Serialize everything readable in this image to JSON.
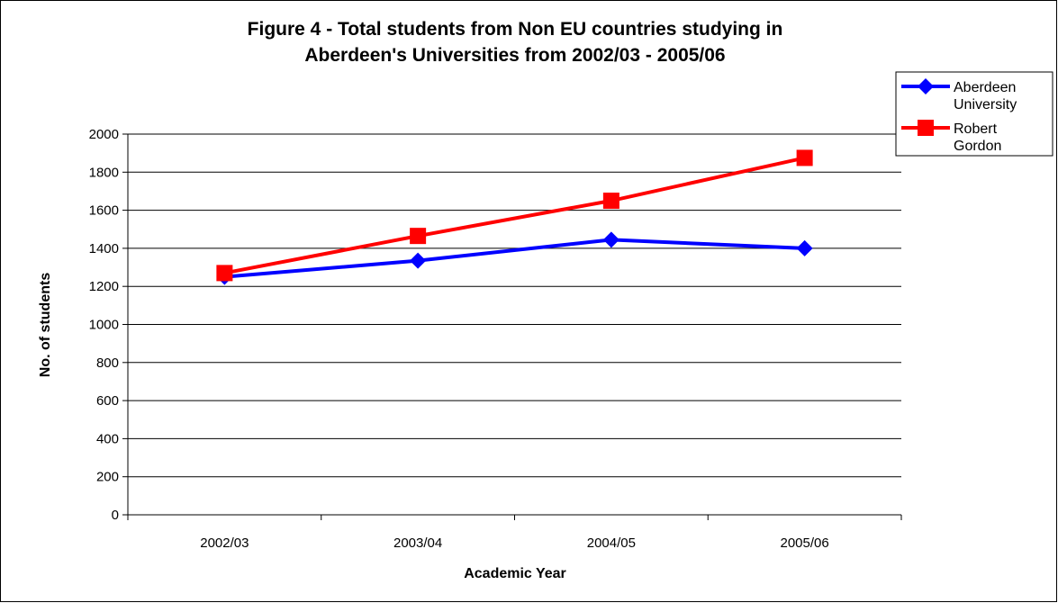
{
  "chart_data": {
    "type": "line",
    "title": [
      "Figure 4 - Total students from Non EU countries studying in",
      "Aberdeen's Universities from 2002/03 - 2005/06"
    ],
    "xlabel": "Academic Year",
    "ylabel": "No. of students",
    "categories": [
      "2002/03",
      "2003/04",
      "2004/05",
      "2005/06"
    ],
    "ylim": [
      0,
      2000
    ],
    "yticks": [
      0,
      200,
      400,
      600,
      800,
      1000,
      1200,
      1400,
      1600,
      1800,
      2000
    ],
    "grid": true,
    "legend_position": "top-right",
    "series": [
      {
        "name": "Aberdeen University",
        "legend_lines": [
          "Aberdeen",
          "University"
        ],
        "values": [
          1250,
          1335,
          1445,
          1400
        ],
        "color": "#0000ff",
        "marker": "diamond"
      },
      {
        "name": "Robert Gordon",
        "legend_lines": [
          "Robert",
          "Gordon"
        ],
        "values": [
          1270,
          1465,
          1650,
          1875
        ],
        "color": "#ff0000",
        "marker": "square"
      }
    ]
  }
}
